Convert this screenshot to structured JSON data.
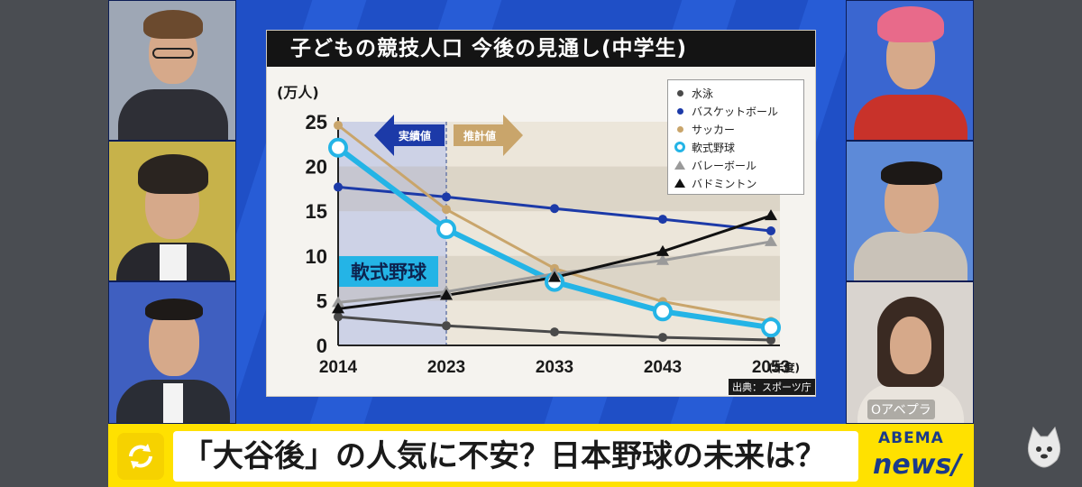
{
  "chart_data": {
    "type": "line",
    "title": "子どもの競技人口 今後の見通し(中学生)",
    "ylabel": "(万人)",
    "xlabel_suffix": "(年度)",
    "x": [
      "2014",
      "2023",
      "2033",
      "2043",
      "2053"
    ],
    "ylim": [
      0,
      25
    ],
    "yticks": [
      "0",
      "5",
      "10",
      "15",
      "20",
      "25"
    ],
    "actual_label": "実績値",
    "forecast_label": "推計値",
    "highlight_label": "軟式野球",
    "source": "出典：スポーツ庁",
    "series": [
      {
        "name": "水泳",
        "values": [
          3.2,
          2.2,
          1.5,
          0.9,
          0.6
        ],
        "color": "#4a4a4a",
        "marker": "dot"
      },
      {
        "name": "バスケットボール",
        "values": [
          17.7,
          16.6,
          15.3,
          14.1,
          12.8
        ],
        "color": "#1c3aa8",
        "marker": "dot"
      },
      {
        "name": "サッカー",
        "values": [
          24.6,
          15.2,
          8.6,
          4.9,
          2.7
        ],
        "color": "#c9a56b",
        "marker": "dot"
      },
      {
        "name": "軟式野球",
        "values": [
          22.1,
          13.0,
          7.1,
          3.8,
          2.0
        ],
        "color": "#24b4e6",
        "marker": "ring"
      },
      {
        "name": "バレーボール",
        "values": [
          4.8,
          6.0,
          8.0,
          9.5,
          11.6
        ],
        "color": "#9a9a9a",
        "marker": "triangle"
      },
      {
        "name": "バドミントン",
        "values": [
          4.1,
          5.6,
          7.6,
          10.5,
          14.5
        ],
        "color": "#111111",
        "marker": "triangle"
      }
    ]
  },
  "ticker": {
    "headline": "「大谷後」の人気に不安？日本野球の未来は？"
  },
  "brand": {
    "line1": "ABEMA",
    "line2": "news/",
    "camera_label": "Oアベプラ"
  }
}
